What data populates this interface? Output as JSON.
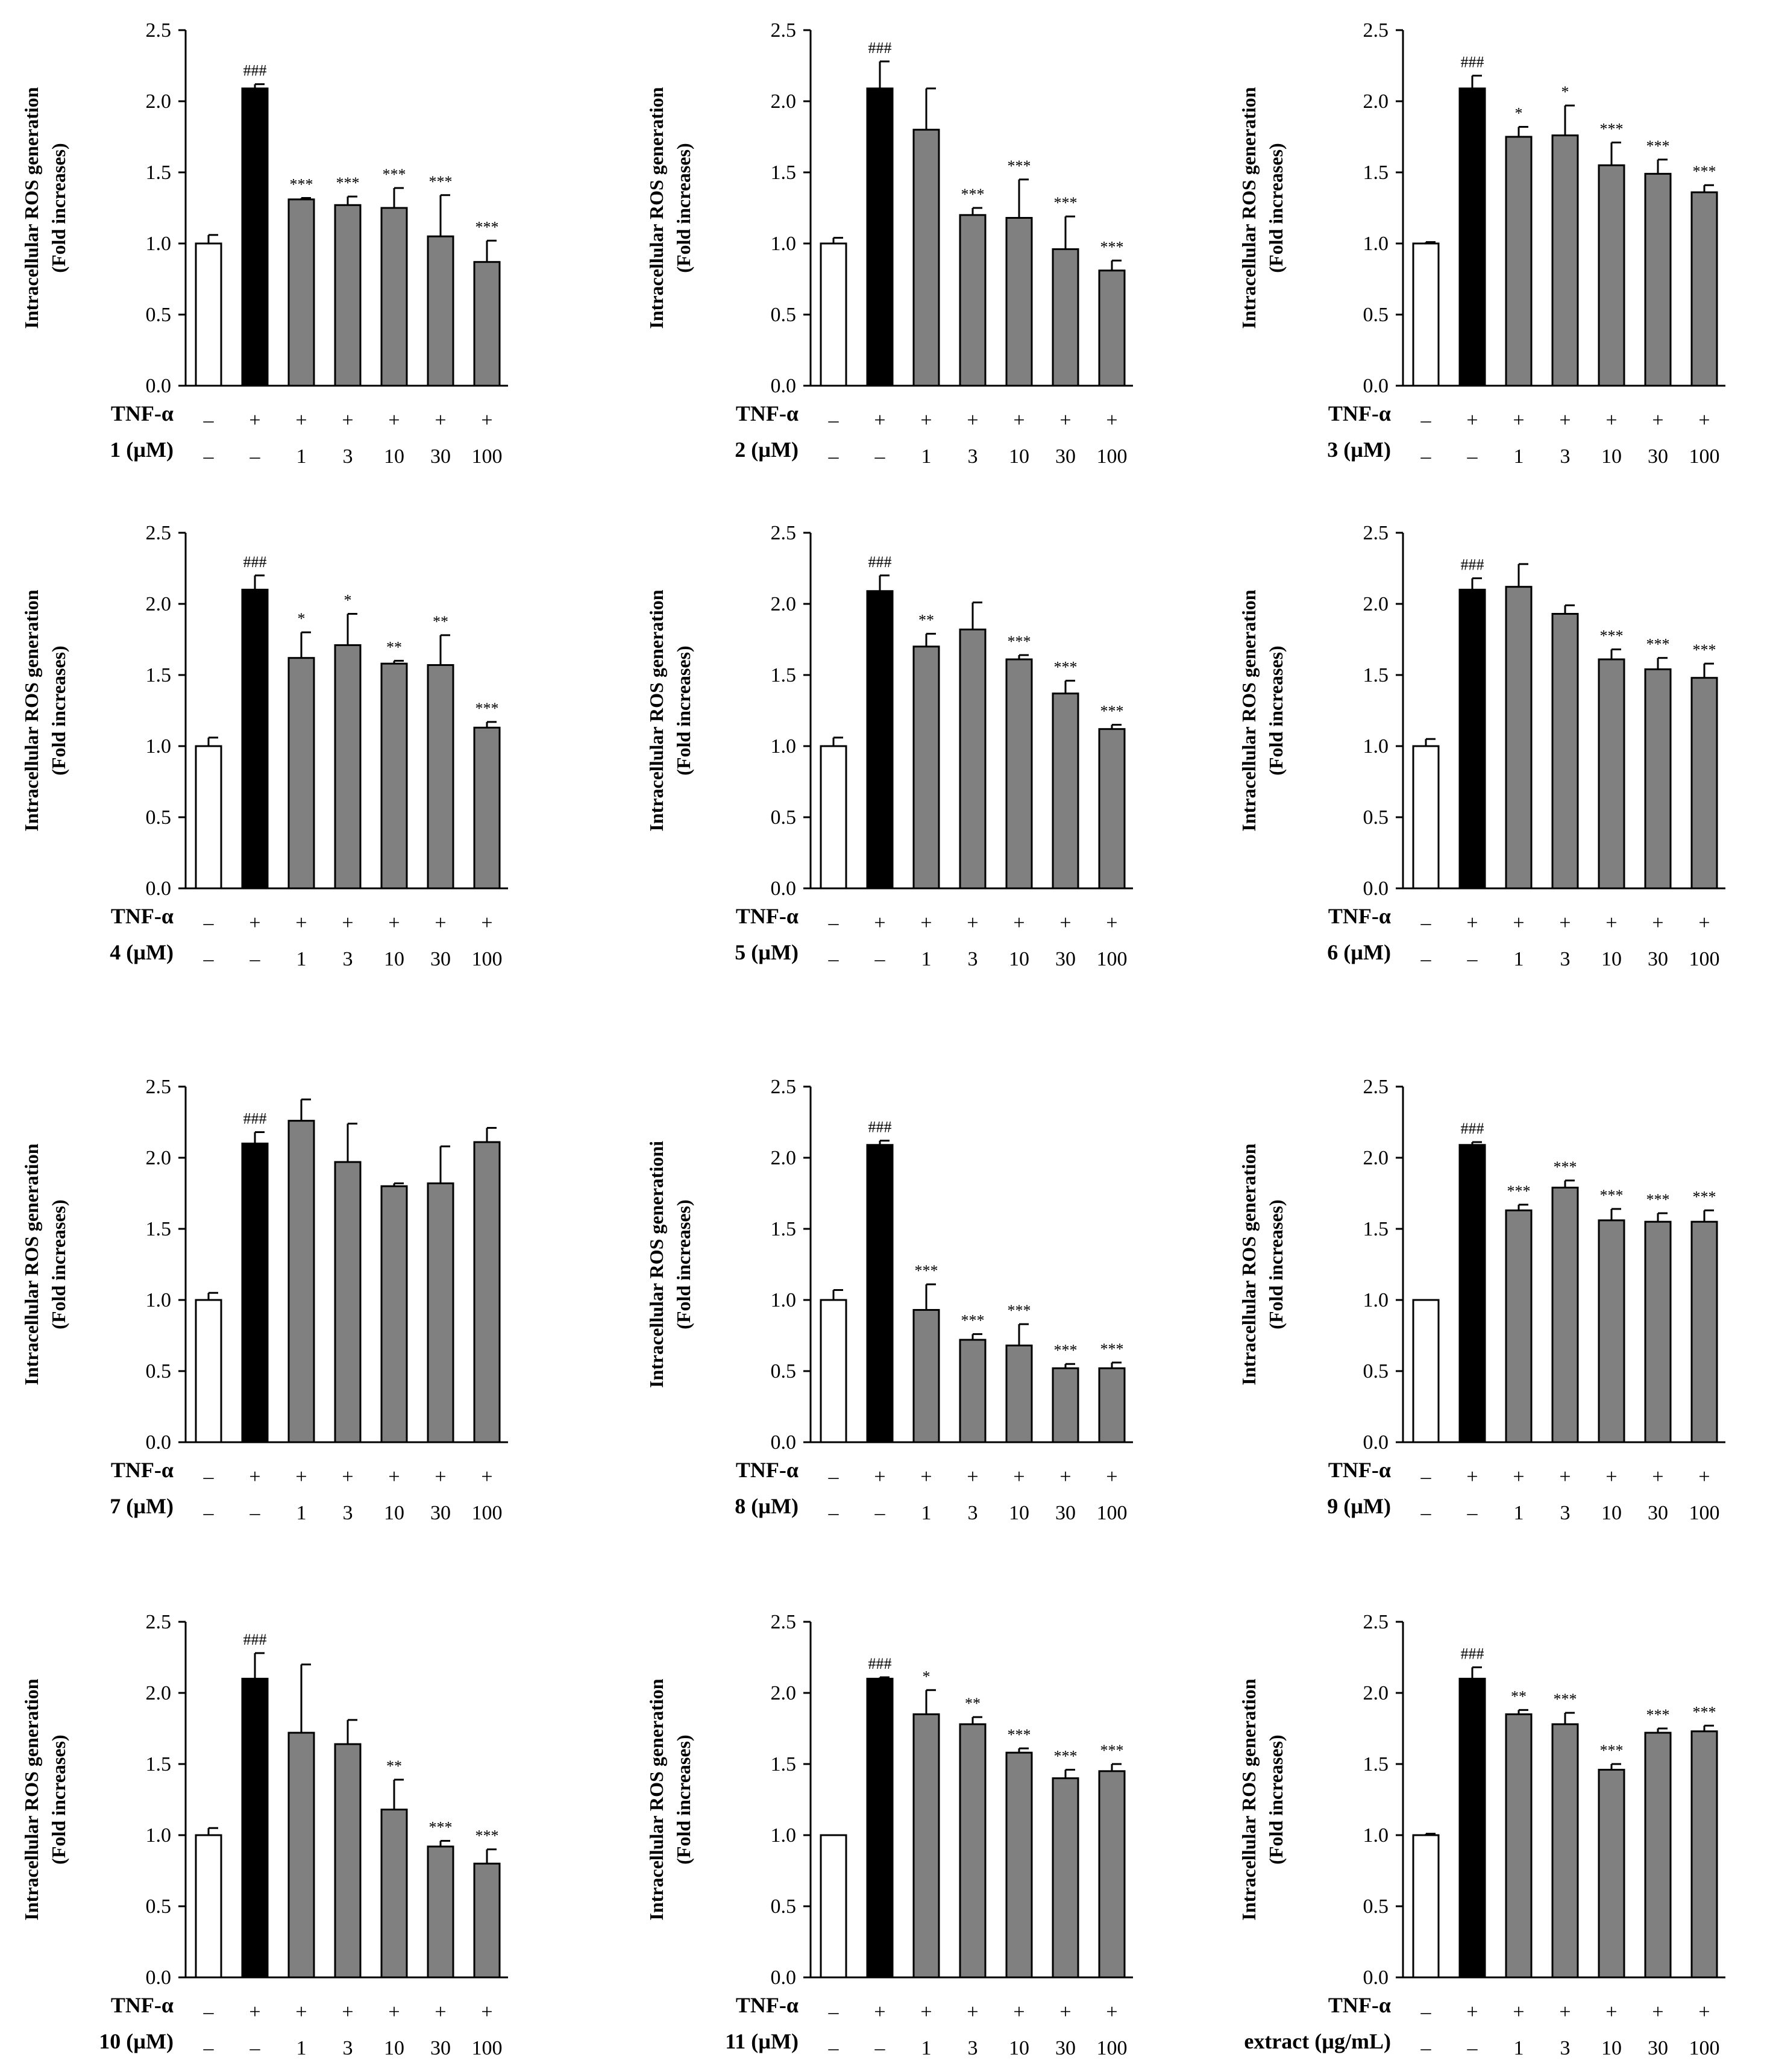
{
  "figure": {
    "background": "#ffffff"
  },
  "chart_data": [
    {
      "type": "bar",
      "title": "",
      "ylabel": "Intracellular ROS generation",
      "ylabel_sub": "(Fold increases)",
      "ylim": [
        0,
        2.5
      ],
      "yticks": [
        "0.0",
        "0.5",
        "1.0",
        "1.5",
        "2.0",
        "2.5"
      ],
      "row1_label": "TNF-α",
      "row1": [
        "–",
        "+",
        "+",
        "+",
        "+",
        "+",
        "+"
      ],
      "row2_label": "1 (µM)",
      "row2": [
        "–",
        "–",
        "1",
        "3",
        "10",
        "30",
        "100"
      ],
      "values": [
        1.0,
        2.09,
        1.31,
        1.27,
        1.25,
        1.05,
        0.87
      ],
      "errors": [
        0.06,
        0.03,
        0.01,
        0.06,
        0.14,
        0.29,
        0.15
      ],
      "sig": [
        "",
        "###",
        "***",
        "***",
        "***",
        "***",
        "***"
      ],
      "bar_colors": [
        "#ffffff",
        "#000000",
        "#808080",
        "#808080",
        "#808080",
        "#808080",
        "#808080"
      ]
    },
    {
      "type": "bar",
      "title": "",
      "ylabel": "Intracellular ROS generation",
      "ylabel_sub": "(Fold increases)",
      "ylim": [
        0,
        2.5
      ],
      "yticks": [
        "0.0",
        "0.5",
        "1.0",
        "1.5",
        "2.0",
        "2.5"
      ],
      "row1_label": "TNF-α",
      "row1": [
        "–",
        "+",
        "+",
        "+",
        "+",
        "+",
        "+"
      ],
      "row2_label": "2 (µM)",
      "row2": [
        "–",
        "–",
        "1",
        "3",
        "10",
        "30",
        "100"
      ],
      "values": [
        1.0,
        2.09,
        1.8,
        1.2,
        1.18,
        0.96,
        0.81
      ],
      "errors": [
        0.04,
        0.19,
        0.29,
        0.05,
        0.27,
        0.23,
        0.07
      ],
      "sig": [
        "",
        "###",
        "",
        "***",
        "***",
        "***",
        "***"
      ],
      "bar_colors": [
        "#ffffff",
        "#000000",
        "#808080",
        "#808080",
        "#808080",
        "#808080",
        "#808080"
      ]
    },
    {
      "type": "bar",
      "title": "",
      "ylabel": "Intracellular ROS generation",
      "ylabel_sub": "(Fold increases)",
      "ylim": [
        0,
        2.5
      ],
      "yticks": [
        "0.0",
        "0.5",
        "1.0",
        "1.5",
        "2.0",
        "2.5"
      ],
      "row1_label": "TNF-α",
      "row1": [
        "–",
        "+",
        "+",
        "+",
        "+",
        "+",
        "+"
      ],
      "row2_label": "3 (µM)",
      "row2": [
        "–",
        "–",
        "1",
        "3",
        "10",
        "30",
        "100"
      ],
      "values": [
        1.0,
        2.09,
        1.75,
        1.76,
        1.55,
        1.49,
        1.36
      ],
      "errors": [
        0.01,
        0.09,
        0.07,
        0.21,
        0.16,
        0.1,
        0.05
      ],
      "sig": [
        "",
        "###",
        "*",
        "*",
        "***",
        "***",
        "***"
      ],
      "bar_colors": [
        "#ffffff",
        "#000000",
        "#808080",
        "#808080",
        "#808080",
        "#808080",
        "#808080"
      ]
    },
    {
      "type": "bar",
      "title": "",
      "ylabel": "Intracellular ROS generation",
      "ylabel_sub": "(Fold increases)",
      "ylim": [
        0,
        2.5
      ],
      "yticks": [
        "0.0",
        "0.5",
        "1.0",
        "1.5",
        "2.0",
        "2.5"
      ],
      "row1_label": "TNF-α",
      "row1": [
        "–",
        "+",
        "+",
        "+",
        "+",
        "+",
        "+"
      ],
      "row2_label": "4 (µM)",
      "row2": [
        "–",
        "–",
        "1",
        "3",
        "10",
        "30",
        "100"
      ],
      "values": [
        1.0,
        2.1,
        1.62,
        1.71,
        1.58,
        1.57,
        1.13
      ],
      "errors": [
        0.06,
        0.1,
        0.18,
        0.22,
        0.02,
        0.21,
        0.04
      ],
      "sig": [
        "",
        "###",
        "*",
        "*",
        "**",
        "**",
        "***"
      ],
      "bar_colors": [
        "#ffffff",
        "#000000",
        "#808080",
        "#808080",
        "#808080",
        "#808080",
        "#808080"
      ]
    },
    {
      "type": "bar",
      "title": "",
      "ylabel": "Intracellular ROS generation",
      "ylabel_sub": "(Fold increases)",
      "ylim": [
        0,
        2.5
      ],
      "yticks": [
        "0.0",
        "0.5",
        "1.0",
        "1.5",
        "2.0",
        "2.5"
      ],
      "row1_label": "TNF-α",
      "row1": [
        "–",
        "+",
        "+",
        "+",
        "+",
        "+",
        "+"
      ],
      "row2_label": "5 (µM)",
      "row2": [
        "–",
        "–",
        "1",
        "3",
        "10",
        "30",
        "100"
      ],
      "values": [
        1.0,
        2.09,
        1.7,
        1.82,
        1.61,
        1.37,
        1.12
      ],
      "errors": [
        0.06,
        0.11,
        0.09,
        0.19,
        0.03,
        0.09,
        0.03
      ],
      "sig": [
        "",
        "###",
        "**",
        "",
        "***",
        "***",
        "***"
      ],
      "bar_colors": [
        "#ffffff",
        "#000000",
        "#808080",
        "#808080",
        "#808080",
        "#808080",
        "#808080"
      ]
    },
    {
      "type": "bar",
      "title": "",
      "ylabel": "Intracellular ROS generation",
      "ylabel_sub": "(Fold increases)",
      "ylim": [
        0,
        2.5
      ],
      "yticks": [
        "0.0",
        "0.5",
        "1.0",
        "1.5",
        "2.0",
        "2.5"
      ],
      "row1_label": "TNF-α",
      "row1": [
        "–",
        "+",
        "+",
        "+",
        "+",
        "+",
        "+"
      ],
      "row2_label": "6 (µM)",
      "row2": [
        "–",
        "–",
        "1",
        "3",
        "10",
        "30",
        "100"
      ],
      "values": [
        1.0,
        2.1,
        2.12,
        1.93,
        1.61,
        1.54,
        1.48
      ],
      "errors": [
        0.05,
        0.08,
        0.16,
        0.06,
        0.07,
        0.08,
        0.1
      ],
      "sig": [
        "",
        "###",
        "",
        "",
        "***",
        "***",
        "***"
      ],
      "bar_colors": [
        "#ffffff",
        "#000000",
        "#808080",
        "#808080",
        "#808080",
        "#808080",
        "#808080"
      ]
    },
    {
      "type": "bar",
      "title": "",
      "ylabel": "Intracellular ROS generation",
      "ylabel_sub": "(Fold increases)",
      "ylim": [
        0,
        2.5
      ],
      "yticks": [
        "0.0",
        "0.5",
        "1.0",
        "1.5",
        "2.0",
        "2.5"
      ],
      "row1_label": "TNF-α",
      "row1": [
        "–",
        "+",
        "+",
        "+",
        "+",
        "+",
        "+"
      ],
      "row2_label": "7 (µM)",
      "row2": [
        "–",
        "–",
        "1",
        "3",
        "10",
        "30",
        "100"
      ],
      "values": [
        1.0,
        2.1,
        2.26,
        1.97,
        1.8,
        1.82,
        2.11
      ],
      "errors": [
        0.05,
        0.08,
        0.15,
        0.27,
        0.02,
        0.26,
        0.1
      ],
      "sig": [
        "",
        "###",
        "",
        "",
        "",
        "",
        ""
      ],
      "bar_colors": [
        "#ffffff",
        "#000000",
        "#808080",
        "#808080",
        "#808080",
        "#808080",
        "#808080"
      ]
    },
    {
      "type": "bar",
      "title": "",
      "ylabel": "Intracellular ROS generationi",
      "ylabel_sub": "(Fold increases)",
      "ylim": [
        0,
        2.5
      ],
      "yticks": [
        "0.0",
        "0.5",
        "1.0",
        "1.5",
        "2.0",
        "2.5"
      ],
      "row1_label": "TNF-α",
      "row1": [
        "–",
        "+",
        "+",
        "+",
        "+",
        "+",
        "+"
      ],
      "row2_label": "8 (µM)",
      "row2": [
        "–",
        "–",
        "1",
        "3",
        "10",
        "30",
        "100"
      ],
      "values": [
        1.0,
        2.09,
        0.93,
        0.72,
        0.68,
        0.52,
        0.52
      ],
      "errors": [
        0.07,
        0.03,
        0.18,
        0.04,
        0.15,
        0.03,
        0.04
      ],
      "sig": [
        "",
        "###",
        "***",
        "***",
        "***",
        "***",
        "***"
      ],
      "bar_colors": [
        "#ffffff",
        "#000000",
        "#808080",
        "#808080",
        "#808080",
        "#808080",
        "#808080"
      ]
    },
    {
      "type": "bar",
      "title": "",
      "ylabel": "Intracellular ROS generation",
      "ylabel_sub": "(Fold increases)",
      "ylim": [
        0,
        2.5
      ],
      "yticks": [
        "0.0",
        "0.5",
        "1.0",
        "1.5",
        "2.0",
        "2.5"
      ],
      "row1_label": "TNF-α",
      "row1": [
        "–",
        "+",
        "+",
        "+",
        "+",
        "+",
        "+"
      ],
      "row2_label": "9 (µM)",
      "row2": [
        "–",
        "–",
        "1",
        "3",
        "10",
        "30",
        "100"
      ],
      "values": [
        1.0,
        2.09,
        1.63,
        1.79,
        1.56,
        1.55,
        1.55
      ],
      "errors": [
        0.0,
        0.02,
        0.04,
        0.05,
        0.08,
        0.06,
        0.08
      ],
      "sig": [
        "",
        "###",
        "***",
        "***",
        "***",
        "***",
        "***"
      ],
      "bar_colors": [
        "#ffffff",
        "#000000",
        "#808080",
        "#808080",
        "#808080",
        "#808080",
        "#808080"
      ]
    },
    {
      "type": "bar",
      "title": "",
      "ylabel": "Intracellular ROS generation",
      "ylabel_sub": "(Fold increases)",
      "ylim": [
        0,
        2.5
      ],
      "yticks": [
        "0.0",
        "0.5",
        "1.0",
        "1.5",
        "2.0",
        "2.5"
      ],
      "row1_label": "TNF-α",
      "row1": [
        "–",
        "+",
        "+",
        "+",
        "+",
        "+",
        "+"
      ],
      "row2_label": "10 (µM)",
      "row2": [
        "–",
        "–",
        "1",
        "3",
        "10",
        "30",
        "100"
      ],
      "values": [
        1.0,
        2.1,
        1.72,
        1.64,
        1.18,
        0.92,
        0.8
      ],
      "errors": [
        0.05,
        0.18,
        0.48,
        0.17,
        0.21,
        0.04,
        0.1
      ],
      "sig": [
        "",
        "###",
        "",
        "",
        "**",
        "***",
        "***"
      ],
      "bar_colors": [
        "#ffffff",
        "#000000",
        "#808080",
        "#808080",
        "#808080",
        "#808080",
        "#808080"
      ]
    },
    {
      "type": "bar",
      "title": "",
      "ylabel": "Intracellular ROS generation",
      "ylabel_sub": "(Fold increases)",
      "ylim": [
        0,
        2.5
      ],
      "yticks": [
        "0.0",
        "0.5",
        "1.0",
        "1.5",
        "2.0",
        "2.5"
      ],
      "row1_label": "TNF-α",
      "row1": [
        "–",
        "+",
        "+",
        "+",
        "+",
        "+",
        "+"
      ],
      "row2_label": "11 (µM)",
      "row2": [
        "–",
        "–",
        "1",
        "3",
        "10",
        "30",
        "100"
      ],
      "values": [
        1.0,
        2.1,
        1.85,
        1.78,
        1.58,
        1.4,
        1.45
      ],
      "errors": [
        0.0,
        0.01,
        0.17,
        0.05,
        0.03,
        0.06,
        0.05
      ],
      "sig": [
        "",
        "###",
        "*",
        "**",
        "***",
        "***",
        "***"
      ],
      "bar_colors": [
        "#ffffff",
        "#000000",
        "#808080",
        "#808080",
        "#808080",
        "#808080",
        "#808080"
      ]
    },
    {
      "type": "bar",
      "title": "",
      "ylabel": "Intracellular ROS generation",
      "ylabel_sub": "(Fold increases)",
      "ylim": [
        0,
        2.5
      ],
      "yticks": [
        "0.0",
        "0.5",
        "1.0",
        "1.5",
        "2.0",
        "2.5"
      ],
      "row1_label": "TNF-α",
      "row1": [
        "–",
        "+",
        "+",
        "+",
        "+",
        "+",
        "+"
      ],
      "row2_label": "extract (µg/mL)",
      "row2": [
        "–",
        "–",
        "1",
        "3",
        "10",
        "30",
        "100"
      ],
      "values": [
        1.0,
        2.1,
        1.85,
        1.78,
        1.46,
        1.72,
        1.73
      ],
      "errors": [
        0.01,
        0.08,
        0.03,
        0.08,
        0.04,
        0.03,
        0.04
      ],
      "sig": [
        "",
        "###",
        "**",
        "***",
        "***",
        "***",
        "***"
      ],
      "bar_colors": [
        "#ffffff",
        "#000000",
        "#808080",
        "#808080",
        "#808080",
        "#808080",
        "#808080"
      ]
    }
  ]
}
